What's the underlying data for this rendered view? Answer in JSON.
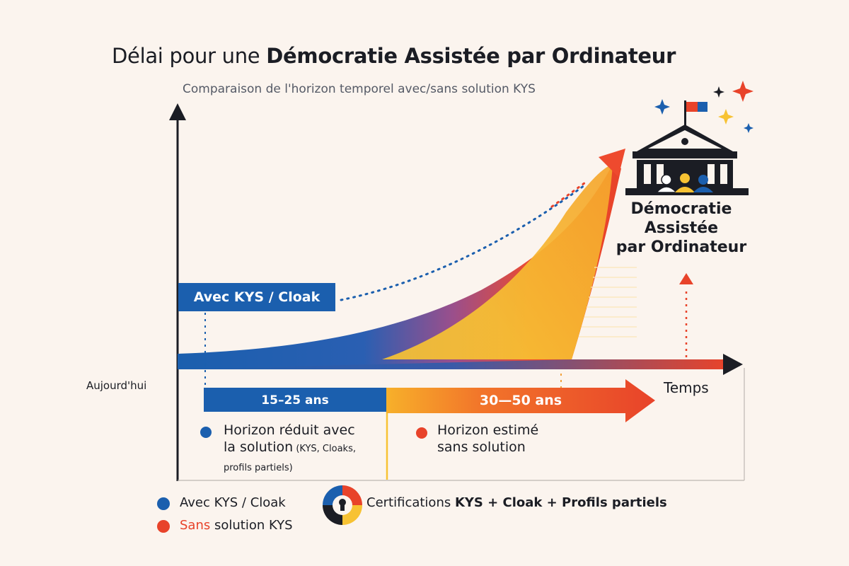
{
  "title": {
    "part1": "Délai pour une ",
    "part2": "Démocratie Assistée par Ordinateur"
  },
  "subtitle": "Comparaison de l'horizon temporel avec/sans solution KYS",
  "axes": {
    "x_label": "Temps",
    "origin_label": "Aujourd'hui"
  },
  "with_kys_box": "Avec KYS / Cloak",
  "ranges": {
    "with": "15–25 ans",
    "without": "30—50 ans"
  },
  "notes": {
    "with_line1": "Horizon réduit avec",
    "with_line2": "la solution",
    "with_small": " (KYS, Cloaks,",
    "with_line3": "profils partiels)",
    "without_line1": "Horizon estimé",
    "without_line2": "sans solution"
  },
  "destination": {
    "line1": "Démocratie",
    "line2": "Assistée",
    "line3": "par Ordinateur"
  },
  "legend": {
    "with_label": "Avec KYS / Cloak",
    "without_highlight": "Sans",
    "without_rest": " solution KYS",
    "cert_part1": "Certifications ",
    "cert_part2": "KYS + Cloak +",
    "cert_part3": "  Profils partiels"
  },
  "colors": {
    "blue": "#1b5fae",
    "orange": "#f26a1f",
    "red": "#e8432a",
    "yellow": "#f7c233",
    "dark": "#1b1d24"
  },
  "icons": [
    "building-icon",
    "flag-icon",
    "people-icon",
    "sparkle-icon",
    "certification-icon"
  ]
}
